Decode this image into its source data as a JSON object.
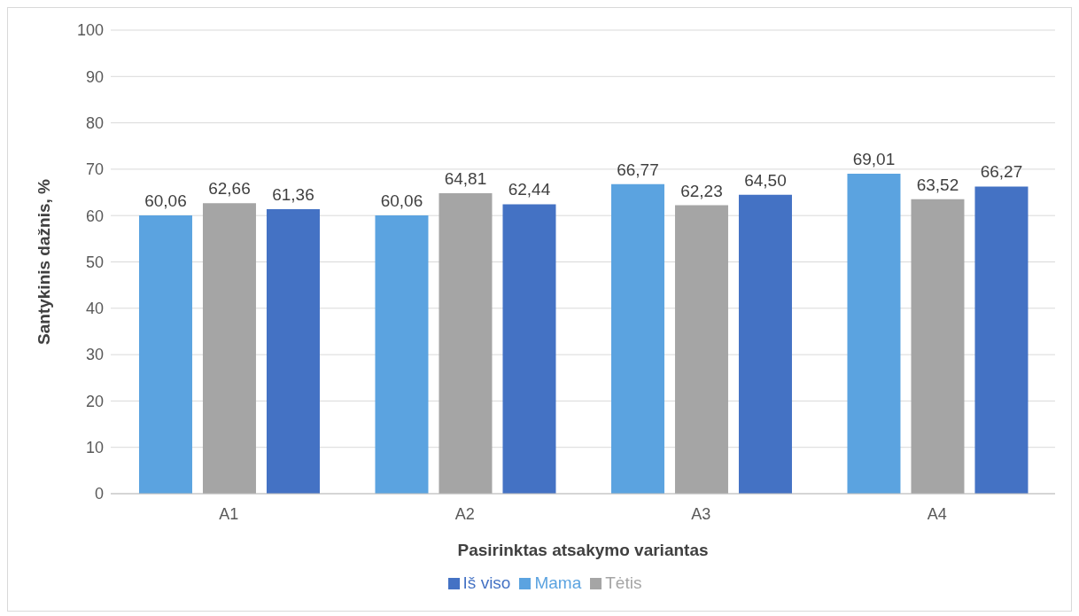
{
  "chart_data": {
    "type": "bar",
    "xlabel": "Pasirinktas atsakymo variantas",
    "ylabel": "Santykinis dažnis, %",
    "categories": [
      "A1",
      "A2",
      "A3",
      "A4"
    ],
    "series": [
      {
        "name": "Mama",
        "color": "#5ba3e0",
        "values": [
          60.06,
          60.06,
          66.77,
          69.01
        ],
        "value_labels": [
          "60,06",
          "60,06",
          "66,77",
          "69,01"
        ]
      },
      {
        "name": "Tėtis",
        "color": "#a5a5a5",
        "values": [
          62.66,
          64.81,
          62.23,
          63.52
        ],
        "value_labels": [
          "62,66",
          "64,81",
          "62,23",
          "63,52"
        ]
      },
      {
        "name": "Iš viso",
        "color": "#4472c4",
        "values": [
          61.36,
          62.44,
          64.5,
          66.27
        ],
        "value_labels": [
          "61,36",
          "62,44",
          "64,50",
          "66,27"
        ]
      }
    ],
    "ylim": [
      0,
      100
    ],
    "yticks": [
      0,
      10,
      20,
      30,
      40,
      50,
      60,
      70,
      80,
      90,
      100
    ],
    "grid": "y",
    "legend": "bottom"
  }
}
